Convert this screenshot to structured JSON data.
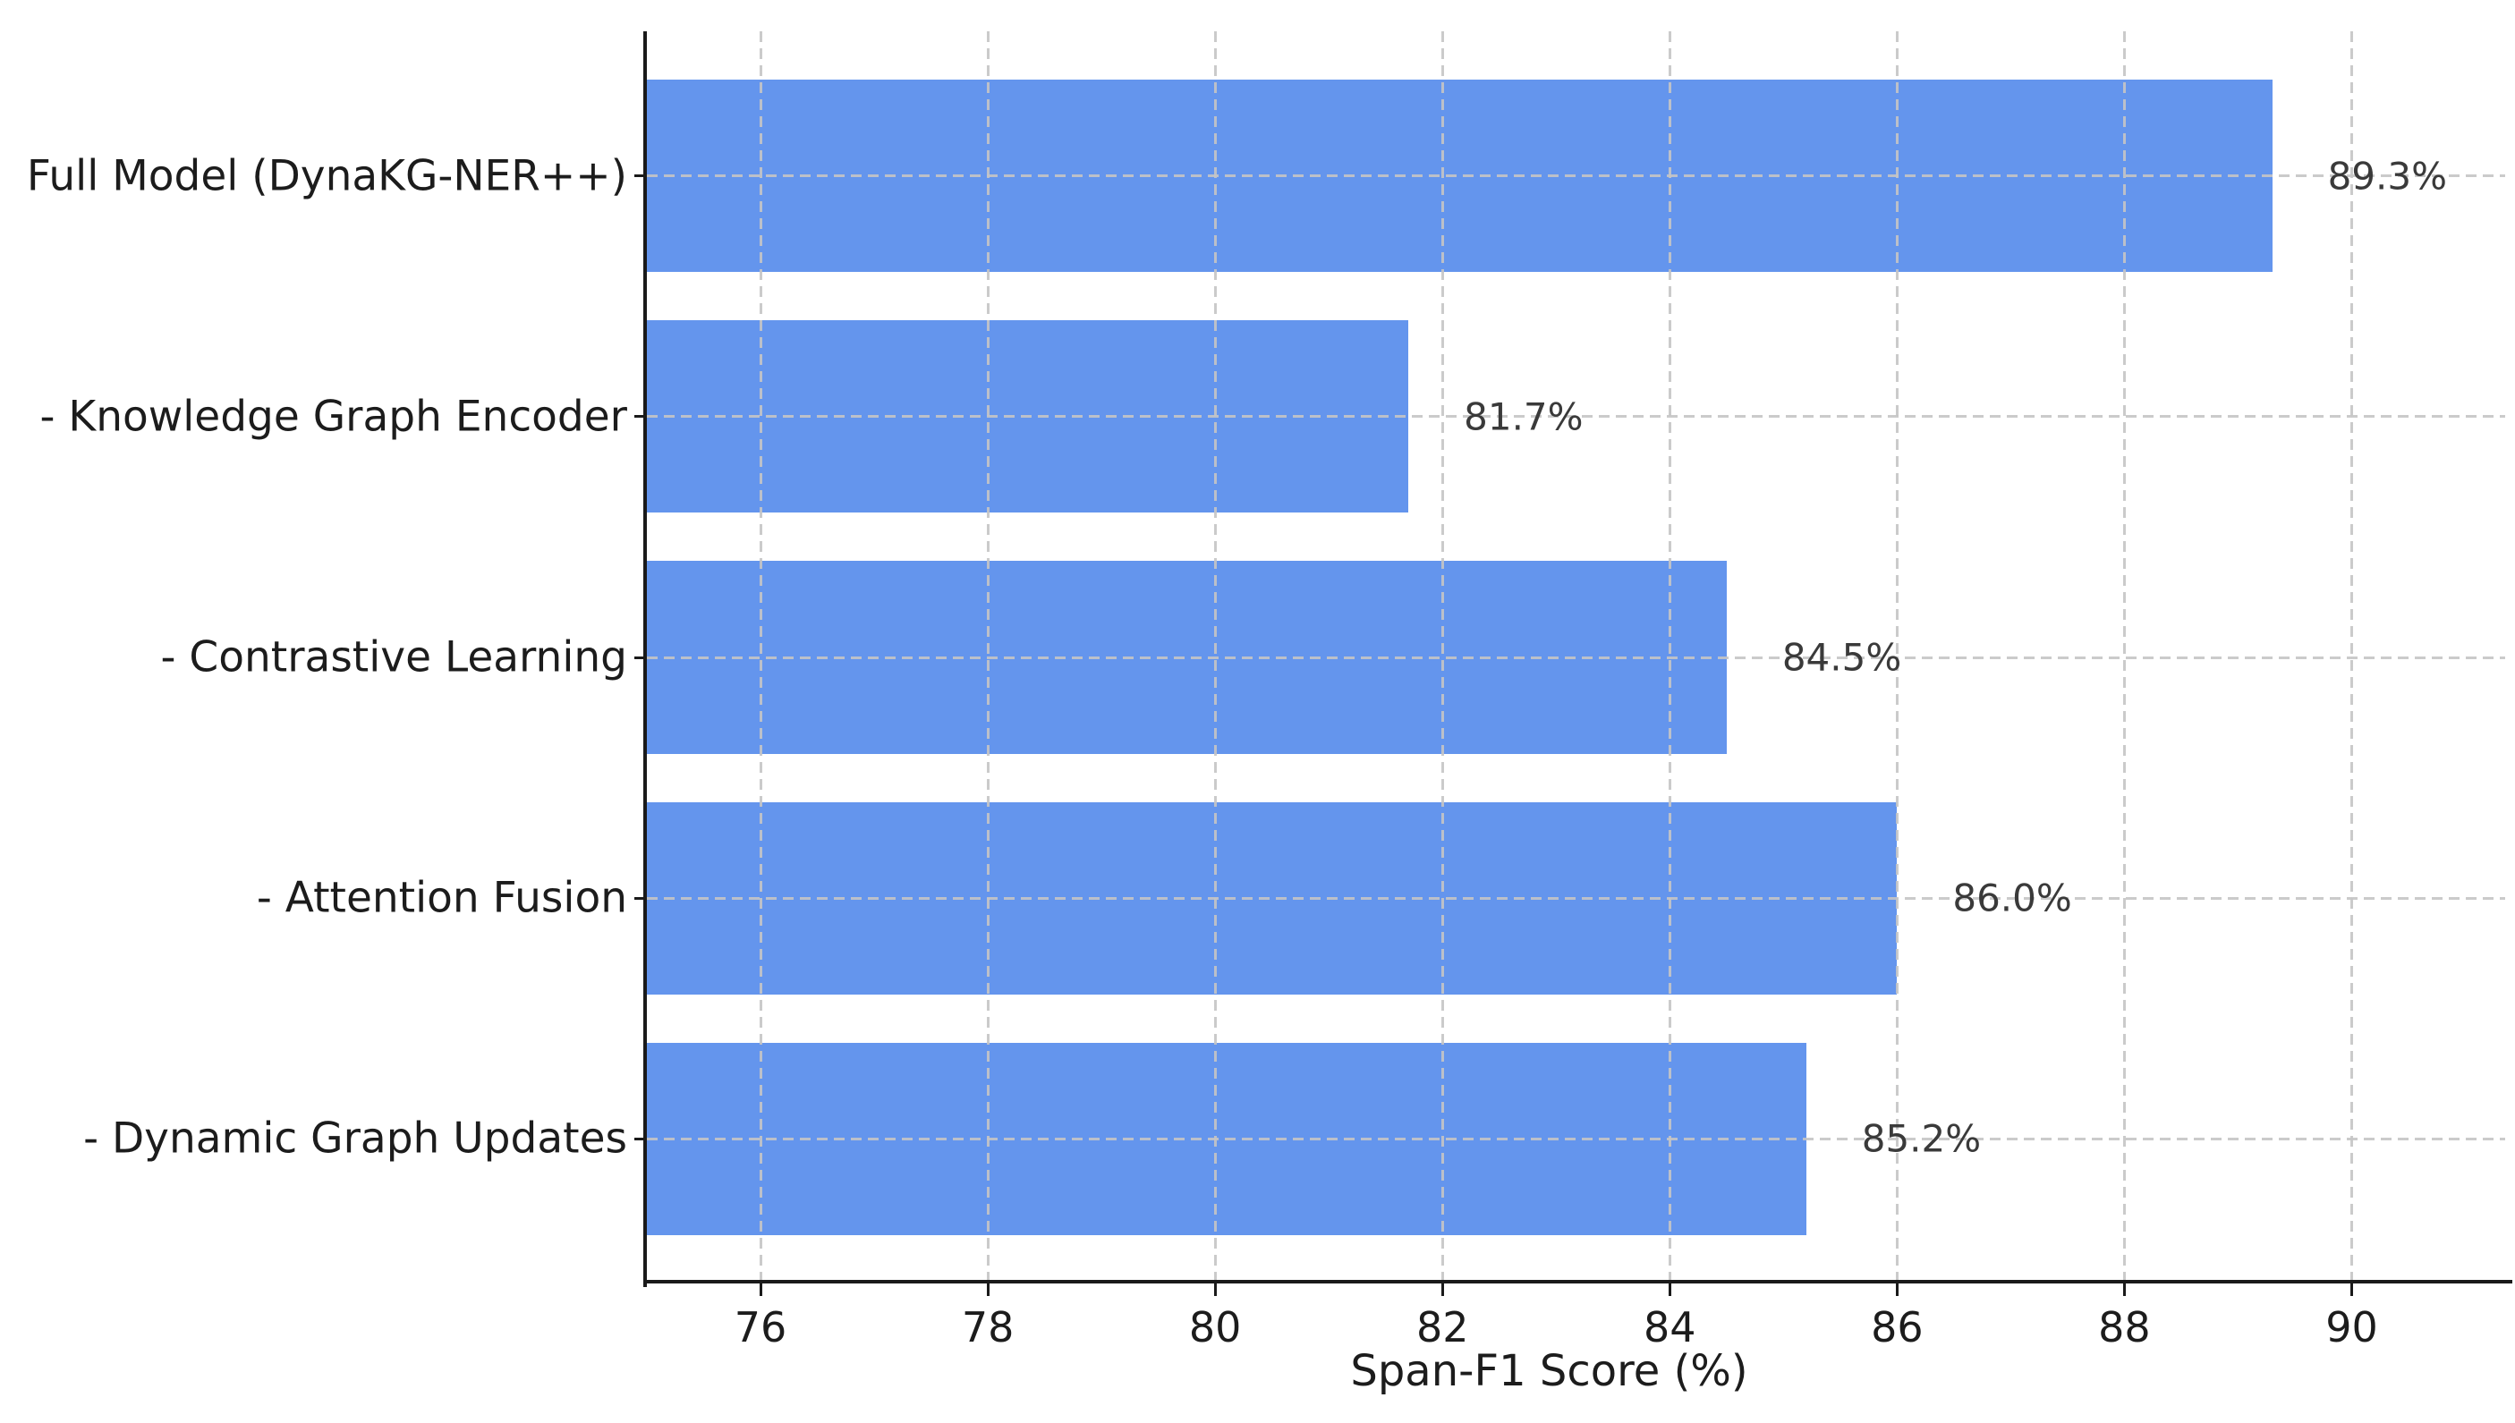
{
  "chart_data": {
    "type": "bar",
    "orientation": "horizontal",
    "title": "",
    "xlabel": "Span-F1 Score (%)",
    "ylabel": "",
    "categories": [
      "Full Model (DynaKG-NER++)",
      "- Knowledge Graph Encoder",
      "- Contrastive Learning",
      "- Attention Fusion",
      "- Dynamic Graph Updates"
    ],
    "values": [
      89.3,
      81.7,
      84.5,
      86.0,
      85.2
    ],
    "value_labels": [
      "89.3%",
      "81.7%",
      "84.5%",
      "86.0%",
      "85.2%"
    ],
    "xlim": [
      75,
      91.35
    ],
    "xticks": [
      76,
      78,
      80,
      82,
      84,
      86,
      88,
      90
    ],
    "xtick_labels": [
      "76",
      "78",
      "80",
      "82",
      "84",
      "86",
      "88",
      "90"
    ],
    "bar_color": "#6495ED",
    "grid": {
      "x": true,
      "y": true,
      "style": "dashed",
      "color": "#c5c5c5"
    },
    "legend_position": "none",
    "spines": [
      "left",
      "bottom"
    ]
  }
}
